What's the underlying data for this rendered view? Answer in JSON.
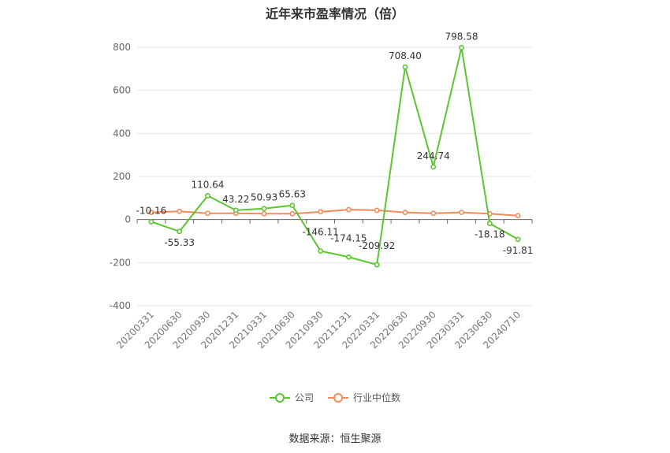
{
  "chart_data": {
    "type": "line",
    "title": "近年来市盈率情况（倍）",
    "categories": [
      "20200331",
      "20200630",
      "20200930",
      "20201231",
      "20210331",
      "20210630",
      "20210930",
      "20211231",
      "20220331",
      "20220630",
      "20220930",
      "20230331",
      "20230630",
      "20240710"
    ],
    "ylim": [
      -400,
      800
    ],
    "yticks": [
      -400,
      -200,
      0,
      200,
      400,
      600,
      800
    ],
    "grid": true,
    "legend_position": "bottom",
    "series": [
      {
        "name": "公司",
        "color": "#5cc531",
        "values": [
          -10.16,
          -55.33,
          110.64,
          43.22,
          50.93,
          65.63,
          -146.11,
          -174.15,
          -209.92,
          708.4,
          244.74,
          798.58,
          -18.18,
          -91.81
        ],
        "labels": [
          "-10.16",
          "-55.33",
          "110.64",
          "43.22",
          "50.93",
          "65.63",
          "-146.11",
          "-174.15",
          "-209.92",
          "708.40",
          "244.74",
          "798.58",
          "-18.18",
          "-91.81"
        ]
      },
      {
        "name": "行业中位数",
        "color": "#f28a5d",
        "values": [
          33,
          38,
          29,
          29,
          27,
          27,
          36,
          46,
          43,
          33,
          29,
          33,
          27,
          18
        ]
      }
    ]
  },
  "source": "数据来源：恒生聚源"
}
